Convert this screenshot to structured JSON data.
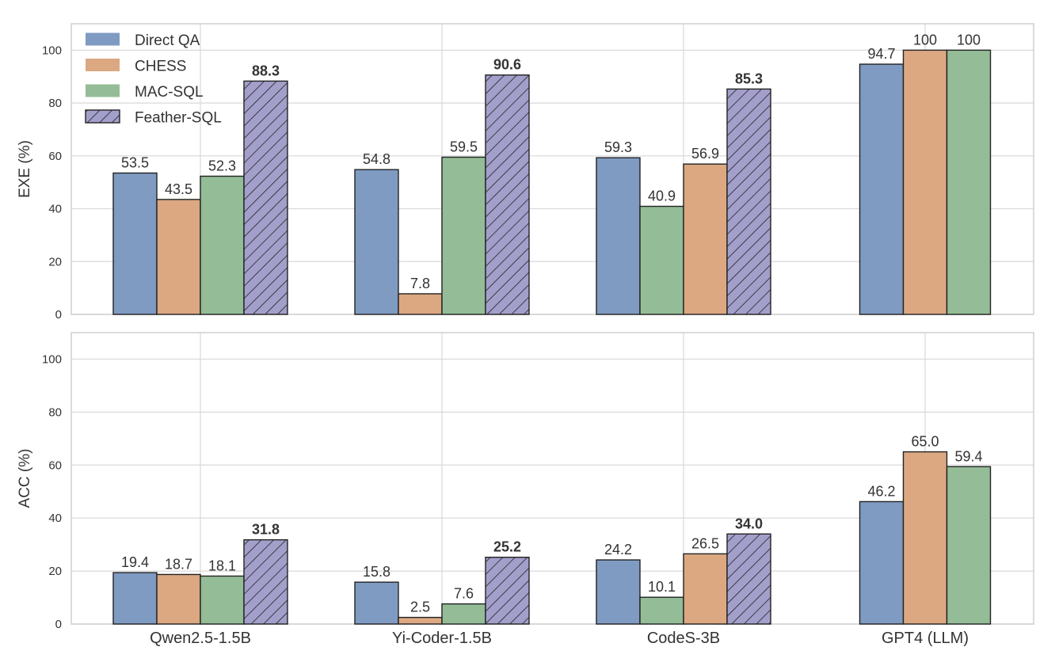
{
  "chart_data": [
    {
      "type": "bar",
      "ylabel": "EXE (%)",
      "ylim": [
        0,
        110
      ],
      "yticks": [
        0,
        20,
        40,
        60,
        80,
        100
      ],
      "grid": true,
      "legend_placement": "top-left",
      "categories": [
        "Qwen2.5-1.5B",
        "Yi-Coder-1.5B",
        "CodeS-3B",
        "GPT4 (LLM)"
      ],
      "groups": [
        {
          "bars": [
            {
              "series": "Direct QA",
              "value": 53.5
            },
            {
              "series": "CHESS",
              "value": 43.5
            },
            {
              "series": "MAC-SQL",
              "value": 52.3
            },
            {
              "series": "Feather-SQL",
              "value": 88.3
            }
          ]
        },
        {
          "bars": [
            {
              "series": "Direct QA",
              "value": 54.8
            },
            {
              "series": "CHESS",
              "value": 7.8
            },
            {
              "series": "MAC-SQL",
              "value": 59.5
            },
            {
              "series": "Feather-SQL",
              "value": 90.6
            }
          ]
        },
        {
          "bars": [
            {
              "series": "Direct QA",
              "value": 59.3
            },
            {
              "series": "MAC-SQL",
              "value": 40.9
            },
            {
              "series": "CHESS",
              "value": 56.9
            },
            {
              "series": "Feather-SQL",
              "value": 85.3
            }
          ]
        },
        {
          "bars": [
            {
              "series": "Direct QA",
              "value": 94.7,
              "label": "94.7"
            },
            {
              "series": "CHESS",
              "value": 100,
              "label": "100"
            },
            {
              "series": "MAC-SQL",
              "value": 100,
              "label": "100"
            }
          ]
        }
      ]
    },
    {
      "type": "bar",
      "ylabel": "ACC (%)",
      "ylim": [
        0,
        110
      ],
      "yticks": [
        0,
        20,
        40,
        60,
        80,
        100
      ],
      "grid": true,
      "categories": [
        "Qwen2.5-1.5B",
        "Yi-Coder-1.5B",
        "CodeS-3B",
        "GPT4 (LLM)"
      ],
      "groups": [
        {
          "bars": [
            {
              "series": "Direct QA",
              "value": 19.4
            },
            {
              "series": "CHESS",
              "value": 18.7
            },
            {
              "series": "MAC-SQL",
              "value": 18.1
            },
            {
              "series": "Feather-SQL",
              "value": 31.8
            }
          ]
        },
        {
          "bars": [
            {
              "series": "Direct QA",
              "value": 15.8
            },
            {
              "series": "CHESS",
              "value": 2.5
            },
            {
              "series": "MAC-SQL",
              "value": 7.6
            },
            {
              "series": "Feather-SQL",
              "value": 25.2
            }
          ]
        },
        {
          "bars": [
            {
              "series": "Direct QA",
              "value": 24.2
            },
            {
              "series": "MAC-SQL",
              "value": 10.1
            },
            {
              "series": "CHESS",
              "value": 26.5
            },
            {
              "series": "Feather-SQL",
              "value": 34.0
            }
          ]
        },
        {
          "bars": [
            {
              "series": "Direct QA",
              "value": 46.2
            },
            {
              "series": "CHESS",
              "value": 65.0
            },
            {
              "series": "MAC-SQL",
              "value": 59.4
            }
          ]
        }
      ]
    }
  ],
  "legend": [
    {
      "name": "Direct QA",
      "color": "#7f9bc2",
      "hatch": false
    },
    {
      "name": "CHESS",
      "color": "#dba882",
      "hatch": false
    },
    {
      "name": "MAC-SQL",
      "color": "#94bd97",
      "hatch": false
    },
    {
      "name": "Feather-SQL",
      "color": "#a39fcb",
      "hatch": true
    }
  ]
}
